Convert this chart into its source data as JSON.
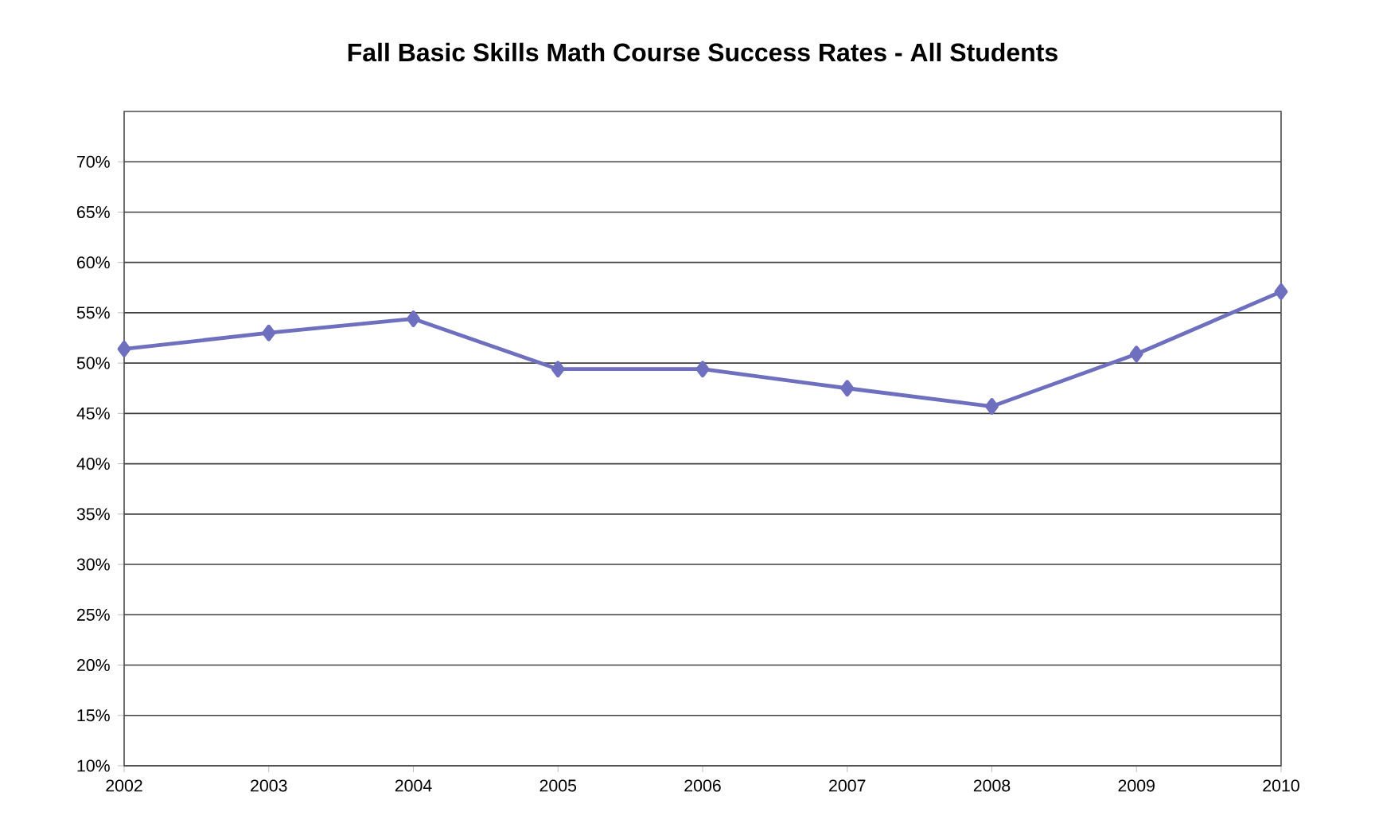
{
  "chart_data": {
    "type": "line",
    "title": "Fall Basic Skills Math Course Success Rates - All Students",
    "x": [
      2002,
      2003,
      2004,
      2005,
      2006,
      2007,
      2008,
      2009,
      2010
    ],
    "series": [
      {
        "color": "#6f6fbf",
        "values": [
          51.4,
          53.0,
          54.4,
          49.4,
          49.4,
          47.5,
          45.7,
          50.9,
          57.1
        ]
      }
    ],
    "xlim": [
      2002,
      2010
    ],
    "xticks": [
      2002,
      2003,
      2004,
      2005,
      2006,
      2007,
      2008,
      2009,
      2010
    ],
    "ylim": [
      10,
      75
    ],
    "yticks": [
      {
        "value": 10,
        "label": "10%"
      },
      {
        "value": 15,
        "label": "15%"
      },
      {
        "value": 20,
        "label": "20%"
      },
      {
        "value": 25,
        "label": "25%"
      },
      {
        "value": 30,
        "label": "30%"
      },
      {
        "value": 35,
        "label": "35%"
      },
      {
        "value": 40,
        "label": "40%"
      },
      {
        "value": 45,
        "label": "45%"
      },
      {
        "value": 50,
        "label": "50%"
      },
      {
        "value": 55,
        "label": "55%"
      },
      {
        "value": 60,
        "label": "60%"
      },
      {
        "value": 65,
        "label": "65%"
      },
      {
        "value": 70,
        "label": "70%"
      }
    ],
    "grid": "y",
    "marker": "diamond",
    "line_style": "solid"
  }
}
